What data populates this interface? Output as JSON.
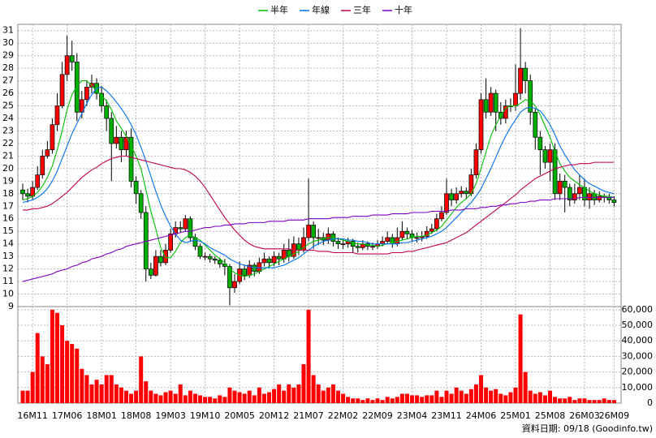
{
  "chart_data": {
    "type": "candlestick",
    "up_color": "#ff0000",
    "down_color": "#00b000",
    "grid": true,
    "legend": "top",
    "footnote": "資料日期: 09/18 (Goodinfo.tw)",
    "categories": [
      null,
      null,
      "16M11",
      null,
      null,
      null,
      null,
      null,
      null,
      "17M06",
      null,
      null,
      null,
      null,
      null,
      null,
      "18M01",
      null,
      null,
      null,
      null,
      null,
      null,
      "18M08",
      null,
      null,
      null,
      null,
      null,
      null,
      "19M03",
      null,
      null,
      null,
      null,
      null,
      null,
      "19M10",
      null,
      null,
      null,
      null,
      null,
      null,
      "20M05",
      null,
      null,
      null,
      null,
      null,
      null,
      "20M12",
      null,
      null,
      null,
      null,
      null,
      null,
      "21M07",
      null,
      null,
      null,
      null,
      null,
      null,
      "22M02",
      null,
      null,
      null,
      null,
      null,
      null,
      "22M09",
      null,
      null,
      null,
      null,
      null,
      null,
      "23M04",
      null,
      null,
      null,
      null,
      null,
      null,
      "23M11",
      null,
      null,
      null,
      null,
      null,
      null,
      "24M06",
      null,
      null,
      null,
      null,
      null,
      null,
      "25M01",
      null,
      null,
      null,
      null,
      null,
      null,
      "25M08",
      null,
      null,
      null,
      null,
      null,
      null,
      "26M03",
      null,
      null,
      null,
      null,
      null,
      "26M09"
    ],
    "open": [
      18.3,
      18,
      17.8,
      18.5,
      19.5,
      21,
      21.5,
      23.5,
      25,
      27.5,
      29,
      28.5,
      24.5,
      25.5,
      26.5,
      26.8,
      26,
      25,
      24,
      22,
      22.5,
      21.5,
      22.5,
      19,
      18,
      16.5,
      12,
      11.5,
      13,
      12.5,
      13.5,
      14.8,
      15.3,
      15.2,
      16,
      14.5,
      13.8,
      13,
      13,
      12.8,
      12.7,
      12.4,
      12.2,
      10.5,
      11,
      12,
      11.5,
      12.3,
      11.8,
      12.5,
      12.8,
      12.5,
      13,
      12.8,
      13.5,
      13,
      14,
      13.5,
      14.5,
      15.5,
      14.5,
      14.5,
      14.3,
      14.8,
      14.2,
      14,
      14,
      14.2,
      13.8,
      13.7,
      14,
      13.8,
      13.8,
      14,
      14.2,
      14.5,
      14,
      14.5,
      15,
      14.8,
      14.5,
      14.5,
      14.6,
      15,
      15.2,
      16,
      16.5,
      18,
      17.5,
      18,
      18.2,
      18,
      19.5,
      21.5,
      25.5,
      24.5,
      26,
      24.5,
      24,
      25,
      25,
      26,
      28,
      27,
      24.5,
      22.5,
      21.5,
      20.5,
      21.5,
      18,
      19,
      18.5,
      17.5,
      18,
      18.5,
      17.5,
      18,
      17.5,
      17.8,
      17.7,
      17.5
    ],
    "high": [
      18.8,
      18.4,
      19,
      20.2,
      21.5,
      22.2,
      24,
      26,
      28.5,
      30.6,
      30.2,
      29.2,
      26.2,
      27,
      27.5,
      27.2,
      26.6,
      25.5,
      24.5,
      23.4,
      23,
      23,
      23.2,
      19.4,
      18.3,
      17,
      12.5,
      13.5,
      13.5,
      14,
      15.2,
      15.8,
      15.8,
      16.3,
      16.2,
      14.8,
      14,
      13.3,
      13.2,
      13,
      12.9,
      12.8,
      12.4,
      11.6,
      12.6,
      12.3,
      12.7,
      12.5,
      12.9,
      13.3,
      13,
      13.4,
      13.3,
      14,
      14.4,
      14.6,
      14.5,
      15.3,
      19.2,
      15.8,
      15.2,
      14.9,
      15.3,
      15,
      14.5,
      14.4,
      14.5,
      14.4,
      14.1,
      14.3,
      14.2,
      14.1,
      14.3,
      14.6,
      15,
      14.8,
      15.3,
      15.8,
      15.3,
      15.1,
      14.9,
      15,
      15.4,
      15.6,
      16.4,
      17,
      19.2,
      18.4,
      18.5,
      18.6,
      18.5,
      20,
      22,
      26,
      27.2,
      26.5,
      26.3,
      25.3,
      25.5,
      25.6,
      28.3,
      31.2,
      28.5,
      27.5,
      24.8,
      23,
      21.8,
      22,
      22,
      19.6,
      19.5,
      18.8,
      18.8,
      19.5,
      19.2,
      18.5,
      18.3,
      18.2,
      18,
      18,
      17.8
    ],
    "low": [
      17.5,
      17.3,
      17.5,
      18.3,
      19.2,
      20.8,
      21.2,
      23,
      24.8,
      27,
      27.8,
      23.8,
      24,
      25,
      26,
      25.5,
      24.5,
      23,
      19,
      21.6,
      20.5,
      21,
      18.5,
      17.2,
      16,
      11,
      11.2,
      11.4,
      12.2,
      12.3,
      13.3,
      14.5,
      14.9,
      15,
      14.2,
      13.5,
      12.8,
      12.7,
      12.5,
      12.4,
      12.1,
      11.5,
      9.1,
      10.1,
      10.8,
      11.1,
      11.3,
      11.4,
      11.6,
      12.2,
      12.1,
      12.2,
      12.3,
      12.5,
      12.6,
      12.8,
      13.1,
      13.3,
      14.2,
      13.6,
      13.9,
      13.9,
      14,
      13.8,
      13.6,
      13.6,
      13.7,
      13.3,
      13.3,
      13.5,
      13.5,
      13.5,
      13.6,
      13.8,
      14,
      13.7,
      13.8,
      14.3,
      14.4,
      14.2,
      14.1,
      14.2,
      14.4,
      14.8,
      15,
      15.8,
      16.3,
      17,
      17.2,
      17.7,
      17.6,
      17.8,
      19.2,
      21.2,
      24,
      24.2,
      23,
      23.5,
      23.6,
      24.5,
      24.6,
      25.5,
      26,
      23.5,
      21.5,
      19.5,
      20,
      19,
      17.5,
      17.5,
      16.5,
      17,
      17.2,
      17.5,
      17,
      16.8,
      17.1,
      17.3,
      17.3,
      17.2,
      17
    ],
    "close": [
      18,
      17.8,
      18.5,
      19.5,
      21,
      21.5,
      23.5,
      25,
      27.5,
      29,
      28.5,
      24.5,
      25.5,
      26.5,
      26.8,
      26,
      25,
      24,
      22,
      22.5,
      21.5,
      22.5,
      19,
      18,
      16.5,
      12,
      11.5,
      13,
      12.5,
      13.5,
      14.8,
      15.3,
      15.2,
      16,
      14.5,
      13.8,
      13,
      13,
      12.8,
      12.7,
      12.4,
      12.2,
      10.5,
      11,
      12,
      11.5,
      12.3,
      11.8,
      12.5,
      12.8,
      12.5,
      13,
      12.8,
      13.5,
      13,
      14,
      13.5,
      14.5,
      15.5,
      14.5,
      14.5,
      14.3,
      14.8,
      14.2,
      14,
      14,
      14.2,
      13.8,
      13.7,
      14,
      13.8,
      13.8,
      14,
      14.2,
      14.5,
      14,
      14.5,
      15,
      14.8,
      14.5,
      14.5,
      14.6,
      15,
      15.2,
      16,
      16.5,
      18,
      17.5,
      18,
      18.2,
      18,
      19.5,
      21.5,
      25.5,
      24.5,
      26,
      24.5,
      24,
      25,
      25,
      26,
      28,
      27,
      24.5,
      22.5,
      21.5,
      20.5,
      21.5,
      18,
      19,
      18.5,
      17.5,
      18,
      18.5,
      17.5,
      18,
      17.5,
      17.8,
      17.7,
      17.5,
      17.3
    ],
    "series": [
      {
        "name": "半年",
        "color": "#00c000",
        "values": [
          17.5,
          17.6,
          17.8,
          18.1,
          18.6,
          19.3,
          20.2,
          21.5,
          23,
          24.7,
          25.9,
          26.6,
          27,
          27,
          26.6,
          26.2,
          25.8,
          25.4,
          24.7,
          23.8,
          23.2,
          22.6,
          21.8,
          21,
          20,
          18.3,
          16.6,
          15.2,
          13.7,
          12.9,
          12.9,
          13.4,
          14.1,
          14.5,
          14.7,
          14.5,
          14.3,
          13.9,
          13.5,
          13.1,
          12.8,
          12.5,
          12,
          11.7,
          11.5,
          11.4,
          11.5,
          11.6,
          11.8,
          12,
          12.2,
          12.4,
          12.6,
          12.8,
          13,
          13.2,
          13.4,
          13.7,
          14,
          14.2,
          14.3,
          14.4,
          14.5,
          14.5,
          14.4,
          14.3,
          14.2,
          14.1,
          14,
          14,
          13.9,
          13.9,
          13.8,
          13.9,
          14,
          14.1,
          14.2,
          14.3,
          14.4,
          14.5,
          14.6,
          14.6,
          14.7,
          14.9,
          15.1,
          15.4,
          15.9,
          16.4,
          16.9,
          17.3,
          17.6,
          18,
          18.8,
          20,
          21.3,
          22.6,
          23.5,
          24.2,
          24.8,
          25,
          25,
          25.2,
          25.5,
          25.4,
          25,
          24.3,
          23.4,
          22.5,
          21.4,
          20.4,
          19.8,
          19.3,
          19,
          18.7,
          18.5,
          18.2,
          18,
          17.9,
          17.8,
          17.8,
          17.7
        ]
      },
      {
        "name": "年線",
        "color": "#0070f0",
        "values": [
          17.3,
          17.4,
          17.5,
          17.7,
          18,
          18.4,
          19,
          19.8,
          20.8,
          21.8,
          22.8,
          23.6,
          24.4,
          25.2,
          25.9,
          26.4,
          26.5,
          26.2,
          25.8,
          25.3,
          24.8,
          24.2,
          23.5,
          22.7,
          21.7,
          20.6,
          19.4,
          18.2,
          17.1,
          16.2,
          15.4,
          14.8,
          14.3,
          14.1,
          14.2,
          14.3,
          14.2,
          14,
          13.7,
          13.5,
          13.3,
          13.1,
          12.8,
          12.6,
          12.4,
          12.3,
          12.2,
          12.1,
          12.1,
          12.1,
          12.1,
          12.1,
          12.2,
          12.3,
          12.5,
          12.7,
          12.9,
          13.2,
          13.5,
          13.8,
          14,
          14.2,
          14.3,
          14.4,
          14.4,
          14.4,
          14.3,
          14.3,
          14.2,
          14.2,
          14.1,
          14,
          14,
          14,
          14,
          14,
          14,
          14.1,
          14.1,
          14.2,
          14.3,
          14.4,
          14.5,
          14.6,
          14.8,
          15,
          15.3,
          15.7,
          16.1,
          16.5,
          16.9,
          17.3,
          17.8,
          18.4,
          19.2,
          20,
          20.9,
          21.8,
          22.6,
          23.3,
          23.9,
          24.5,
          24.8,
          24.9,
          24.8,
          24.6,
          24.1,
          23.5,
          22.7,
          21.8,
          21.1,
          20.5,
          19.9,
          19.5,
          19.1,
          18.8,
          18.6,
          18.4,
          18.2,
          18.1,
          18
        ]
      },
      {
        "name": "三年",
        "color": "#c00050",
        "values": [
          16.7,
          16.7,
          16.8,
          16.8,
          16.9,
          17,
          17.2,
          17.5,
          17.8,
          18.1,
          18.5,
          18.9,
          19.3,
          19.6,
          19.9,
          20.1,
          20.4,
          20.6,
          20.8,
          20.9,
          21,
          21,
          20.9,
          20.8,
          20.7,
          20.6,
          20.5,
          20.4,
          20.3,
          20.2,
          20.1,
          20,
          20,
          19.9,
          19.7,
          19.4,
          19,
          18.5,
          17.9,
          17.3,
          16.7,
          16.1,
          15.6,
          15.1,
          14.7,
          14.3,
          14,
          13.8,
          13.7,
          13.6,
          13.6,
          13.6,
          13.6,
          13.6,
          13.6,
          13.5,
          13.5,
          13.5,
          13.5,
          13.5,
          13.4,
          13.4,
          13.4,
          13.3,
          13.3,
          13.3,
          13.3,
          13.3,
          13.2,
          13.2,
          13.2,
          13.2,
          13.2,
          13.2,
          13.2,
          13.3,
          13.3,
          13.3,
          13.4,
          13.4,
          13.5,
          13.6,
          13.7,
          13.8,
          13.9,
          14,
          14.1,
          14.3,
          14.5,
          14.7,
          14.9,
          15.2,
          15.5,
          15.8,
          16.1,
          16.4,
          16.7,
          17,
          17.3,
          17.6,
          17.9,
          18.3,
          18.6,
          18.9,
          19.2,
          19.4,
          19.6,
          19.8,
          20,
          20.1,
          20.2,
          20.3,
          20.3,
          20.4,
          20.4,
          20.4,
          20.5,
          20.5,
          20.5,
          20.5,
          20.5
        ]
      },
      {
        "name": "十年",
        "color": "#8000c0",
        "values": [
          11,
          11.1,
          11.2,
          11.3,
          11.4,
          11.5,
          11.6,
          11.8,
          11.9,
          12,
          12.2,
          12.3,
          12.5,
          12.6,
          12.8,
          12.9,
          13,
          13.2,
          13.3,
          13.5,
          13.6,
          13.8,
          13.9,
          14,
          14.1,
          14.2,
          14.3,
          14.4,
          14.5,
          14.6,
          14.7,
          14.8,
          14.9,
          15,
          15,
          15.1,
          15.2,
          15.3,
          15.3,
          15.4,
          15.4,
          15.5,
          15.5,
          15.6,
          15.6,
          15.6,
          15.7,
          15.7,
          15.7,
          15.7,
          15.8,
          15.8,
          15.8,
          15.8,
          15.9,
          15.9,
          15.9,
          15.9,
          16,
          16,
          16,
          16,
          16,
          16.1,
          16.1,
          16.1,
          16.1,
          16.2,
          16.2,
          16.2,
          16.2,
          16.3,
          16.3,
          16.3,
          16.3,
          16.4,
          16.4,
          16.4,
          16.4,
          16.5,
          16.5,
          16.5,
          16.5,
          16.6,
          16.6,
          16.6,
          16.6,
          16.7,
          16.7,
          16.7,
          16.8,
          16.8,
          16.8,
          16.9,
          16.9,
          17,
          17,
          17.1,
          17.1,
          17.2,
          17.2,
          17.3,
          17.3,
          17.4,
          17.4,
          17.5,
          17.5,
          17.5,
          17.6,
          17.6,
          17.6,
          17.6,
          17.6,
          17.7,
          17.7,
          17.7,
          17.7,
          17.7,
          17.7,
          17.7,
          17.7
        ]
      }
    ],
    "ylim": [
      9,
      31.5
    ],
    "yticks": [
      9,
      10,
      11,
      12,
      13,
      14,
      15,
      16,
      17,
      18,
      19,
      20,
      21,
      22,
      23,
      24,
      25,
      26,
      27,
      28,
      29,
      30,
      31
    ],
    "volume": {
      "color": "#ff0000",
      "values": [
        8000,
        8000,
        20000,
        45000,
        30000,
        25000,
        60000,
        58000,
        50000,
        40000,
        38000,
        35000,
        22000,
        18000,
        12000,
        15000,
        12000,
        18000,
        18000,
        12000,
        10000,
        8000,
        6000,
        8000,
        30000,
        14000,
        8000,
        6000,
        5000,
        7000,
        8000,
        6000,
        12000,
        5000,
        8000,
        6000,
        5000,
        4000,
        4000,
        3000,
        5000,
        4000,
        10000,
        8000,
        7000,
        6000,
        8000,
        5000,
        10000,
        6000,
        7000,
        9000,
        12000,
        8000,
        12000,
        10000,
        12000,
        25000,
        60000,
        18000,
        12000,
        8000,
        10000,
        12000,
        8000,
        6000,
        4000,
        3000,
        3000,
        2000,
        3000,
        2000,
        3000,
        2000,
        4000,
        3000,
        4000,
        6000,
        6000,
        5000,
        5000,
        4000,
        5000,
        5000,
        8000,
        4000,
        8000,
        6000,
        10000,
        8000,
        6000,
        9000,
        12000,
        18000,
        10000,
        8000,
        9000,
        6000,
        5000,
        7000,
        10000,
        57000,
        20000,
        8000,
        6000,
        7000,
        5000,
        8000,
        4000,
        3000,
        3000,
        4000,
        2000,
        3000,
        3000,
        2000,
        2000,
        2000,
        3000,
        2000,
        2000
      ],
      "ylim": [
        0,
        62000
      ],
      "yticks": [
        0,
        {
          "value": 10000,
          "label": "10,000"
        },
        {
          "value": 20000,
          "label": "20,000"
        },
        {
          "value": 30000,
          "label": "30,000"
        },
        {
          "value": 40000,
          "label": "40,000"
        },
        {
          "value": 50000,
          "label": "50,000"
        },
        {
          "value": 60000,
          "label": "60,000"
        }
      ]
    }
  }
}
